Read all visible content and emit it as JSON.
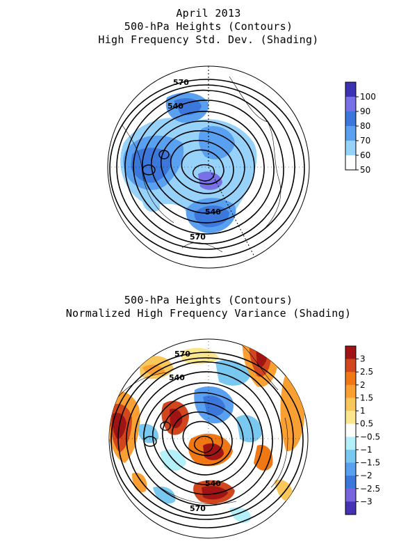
{
  "top_panel": {
    "title_lines": [
      "April 2013",
      "500-hPa Heights (Contours)",
      "High Frequency Std. Dev. (Shading)"
    ],
    "contour_labels": [
      "570",
      "540",
      "540",
      "570"
    ],
    "colorbar": {
      "labels": [
        "100",
        "90",
        "80",
        "70",
        "60",
        "50"
      ],
      "colors": [
        "#3c32b4",
        "#7870e6",
        "#3c78dc",
        "#5aa0f0",
        "#96d2fa",
        "#ffffff"
      ]
    }
  },
  "bottom_panel": {
    "title_lines": [
      "500-hPa Heights (Contours)",
      "Normalized High Frequency Variance (Shading)"
    ],
    "contour_labels": [
      "570",
      "540",
      "540",
      "570"
    ],
    "colorbar": {
      "labels": [
        "3",
        "2.5",
        "2",
        "1.5",
        "1",
        "0.5",
        "−0.5",
        "−1",
        "−1.5",
        "−2",
        "−2.5",
        "−3"
      ],
      "colors": [
        "#a01414",
        "#d2461e",
        "#f07814",
        "#faa032",
        "#fac85a",
        "#fae68c",
        "#ffffff",
        "#b4f0fa",
        "#78c8f0",
        "#5aa0f0",
        "#3c78dc",
        "#7864dc",
        "#4632b4"
      ]
    }
  }
}
